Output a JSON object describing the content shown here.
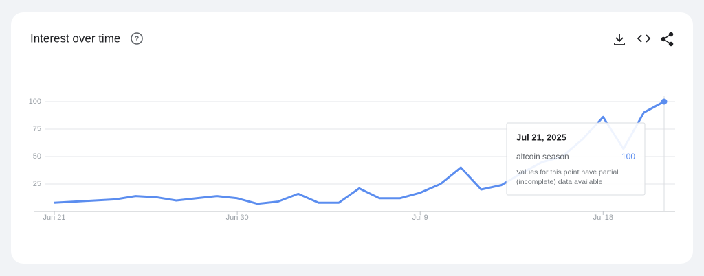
{
  "chart_data": {
    "type": "line",
    "title": "Interest over time",
    "categories": [
      "Jun 21",
      null,
      null,
      null,
      null,
      null,
      null,
      null,
      null,
      "Jun 30",
      null,
      null,
      null,
      null,
      null,
      null,
      null,
      null,
      "Jul 9",
      null,
      null,
      null,
      null,
      null,
      null,
      null,
      null,
      "Jul 18",
      null,
      null,
      null
    ],
    "series": [
      {
        "name": "altcoin season",
        "color": "#5b8def",
        "values": [
          8,
          9,
          10,
          11,
          14,
          13,
          10,
          12,
          14,
          12,
          7,
          9,
          16,
          8,
          8,
          21,
          12,
          12,
          17,
          25,
          40,
          20,
          24,
          35,
          45,
          50,
          66,
          86,
          57,
          90,
          100
        ]
      }
    ],
    "ylim": [
      0,
      100
    ],
    "yticks": [
      25,
      50,
      75,
      100
    ],
    "grid": true,
    "tooltip": {
      "date": "Jul 21, 2025",
      "note_line1": "Values for this point have partial",
      "note_line2": "(incomplete) data available"
    }
  }
}
